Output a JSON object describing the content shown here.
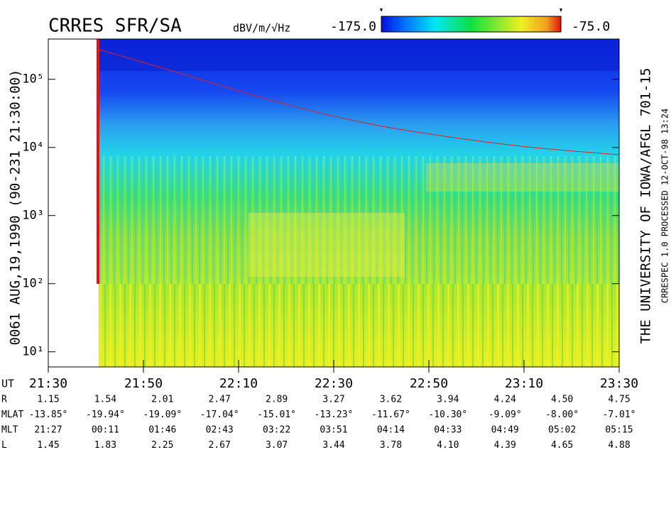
{
  "chart_data": {
    "type": "spectrogram",
    "title": "CRRES SFR/SA",
    "left_label": "0061  AUG,19,1990  (90-231 21:30:00)",
    "right_label": "THE UNIVERSITY OF IOWA/AFGL  701-15",
    "right_sublabel": "CRRESPEC 1.0   PROCESSED 12-OCT-98  13:24",
    "colorbar": {
      "label": "dBV/m/√Hz",
      "lim": [
        {
          "value": -175,
          "label": "-175.0"
        },
        {
          "value": -75,
          "label": "-75.0"
        }
      ]
    },
    "x_label": "UT",
    "xlim": [
      "21:30",
      "23:30"
    ],
    "xticks": [
      "21:30",
      "21:50",
      "22:10",
      "22:30",
      "22:50",
      "23:10",
      "23:30"
    ],
    "yscale": "log",
    "ylim": [
      6,
      390000
    ],
    "yticks": [
      {
        "value": 10,
        "label": "10¹"
      },
      {
        "value": 100,
        "label": "10²"
      },
      {
        "value": 1000,
        "label": "10³"
      },
      {
        "value": 10000,
        "label": "10⁴"
      },
      {
        "value": 100000,
        "label": "10⁵"
      }
    ],
    "ephemeris": [
      {
        "label": "R",
        "values": [
          "1.15",
          "1.54",
          "2.01",
          "2.47",
          "2.89",
          "3.27",
          "3.62",
          "3.94",
          "4.24",
          "4.50",
          "4.75"
        ]
      },
      {
        "label": "MLAT",
        "values": [
          "-13.85°",
          "-19.94°",
          "-19.09°",
          "-17.04°",
          "-15.01°",
          "-13.23°",
          "-11.67°",
          "-10.30°",
          "-9.09°",
          "-8.00°",
          "-7.01°"
        ]
      },
      {
        "label": "MLT",
        "values": [
          "21:27",
          "00:11",
          "01:46",
          "02:43",
          "03:22",
          "03:51",
          "04:14",
          "04:33",
          "04:49",
          "05:02",
          "05:15"
        ]
      },
      {
        "label": "L",
        "values": [
          "1.45",
          "1.83",
          "2.25",
          "2.67",
          "3.07",
          "3.44",
          "3.78",
          "4.10",
          "4.39",
          "4.65",
          "4.88"
        ]
      }
    ]
  }
}
